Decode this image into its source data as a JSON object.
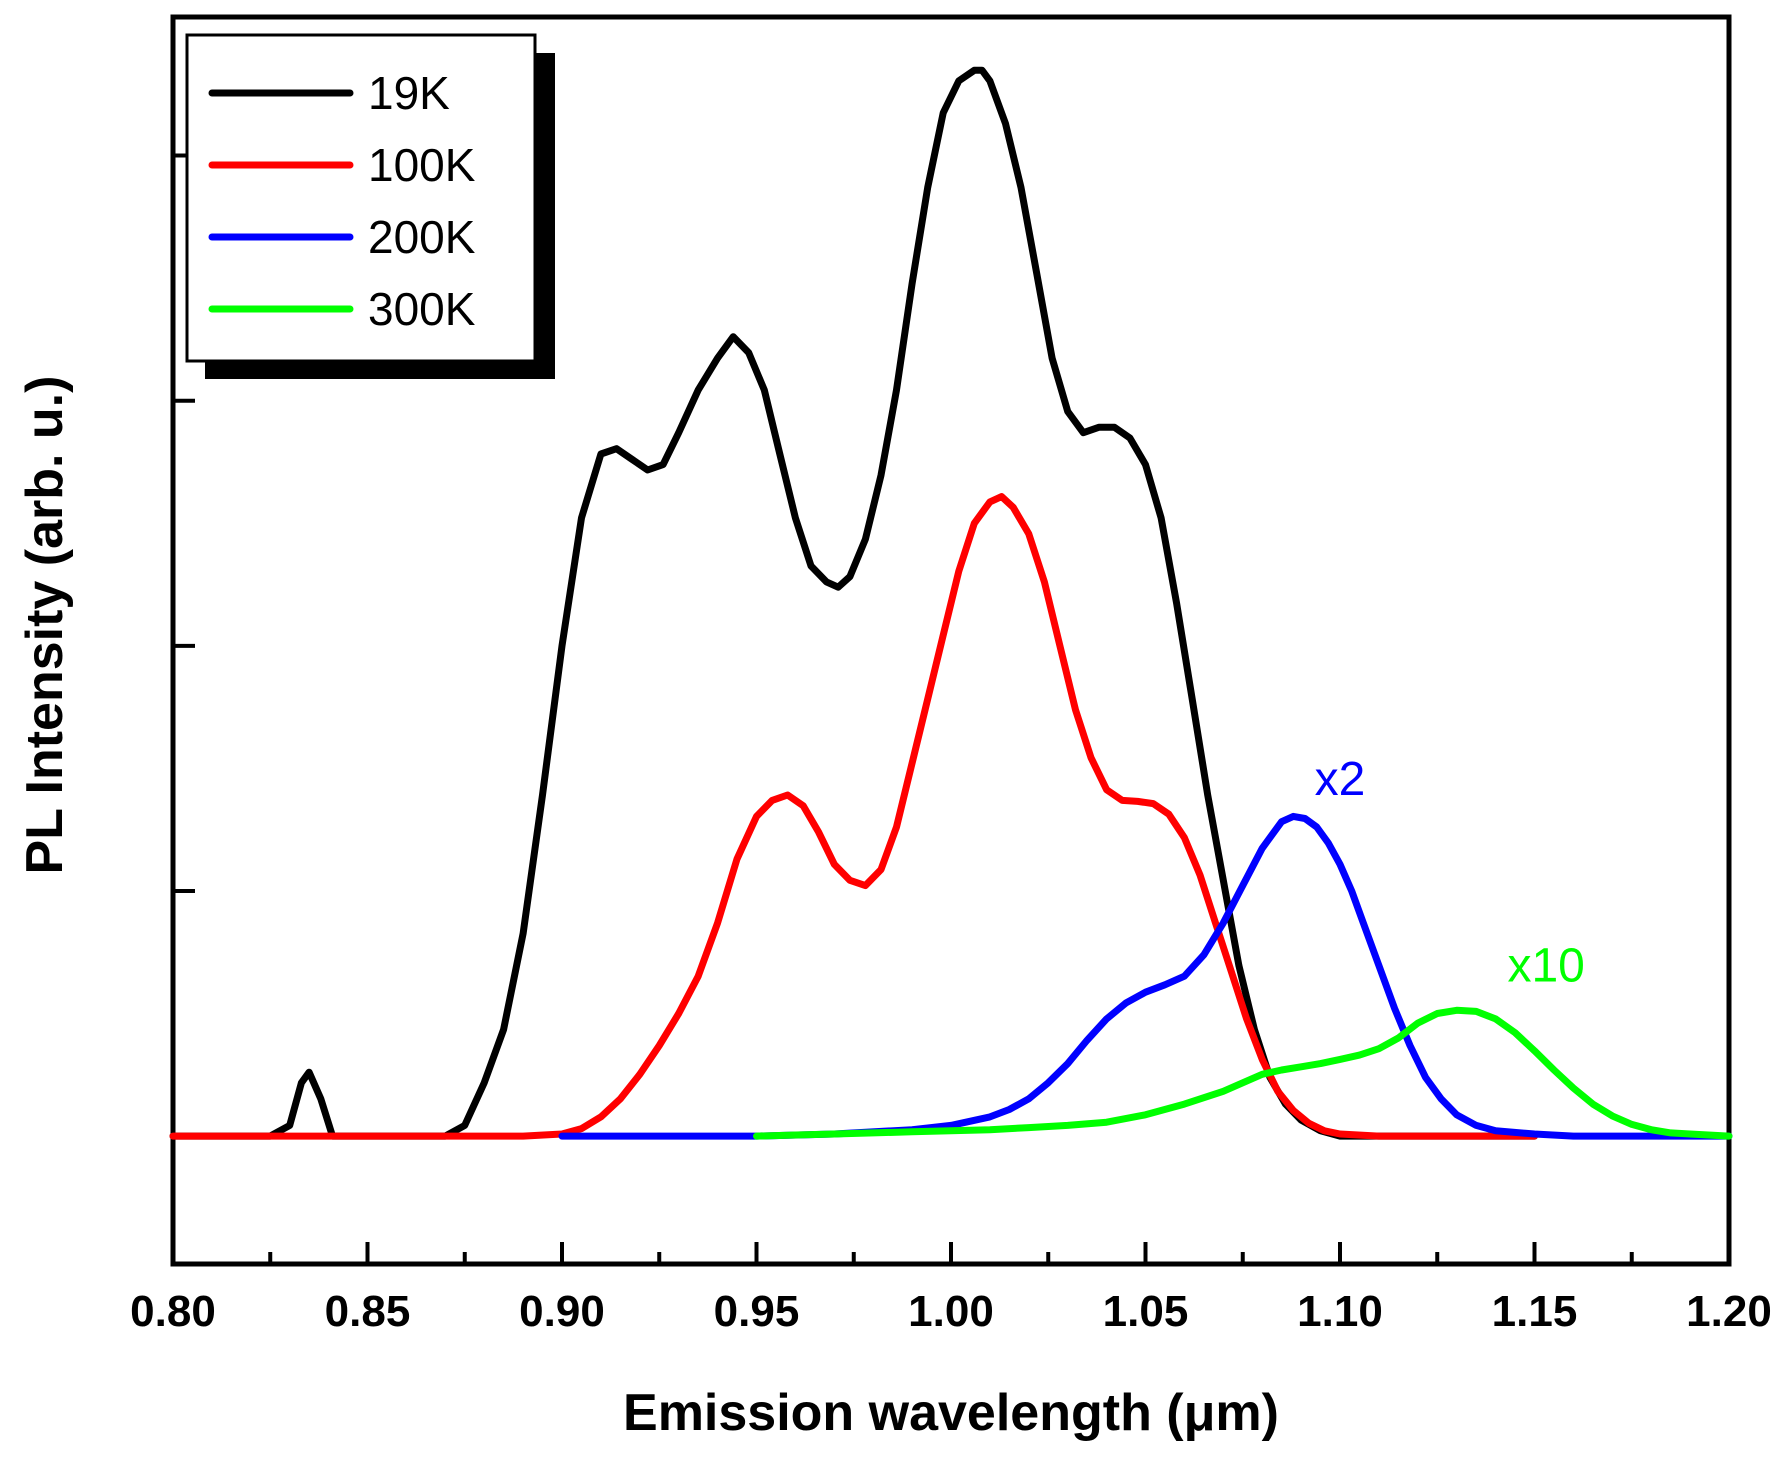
{
  "chart_data": {
    "type": "line",
    "title": "",
    "xlabel": "Emission wavelength (μm)",
    "ylabel": "PL Intensity (arb. u.)",
    "xlim": [
      0.8,
      1.2
    ],
    "ylim": [
      -0.12,
      1.05
    ],
    "x_major_ticks": [
      0.8,
      0.85,
      0.9,
      0.95,
      1.0,
      1.05,
      1.1,
      1.15,
      1.2
    ],
    "x_tick_labels": [
      "0.80",
      "0.85",
      "0.90",
      "0.95",
      "1.00",
      "1.05",
      "1.10",
      "1.15",
      "1.20"
    ],
    "x_minor_ticks": [
      0.825,
      0.875,
      0.925,
      0.975,
      1.025,
      1.075,
      1.125,
      1.175
    ],
    "y_ticks": [
      0.0,
      0.23,
      0.46,
      0.69,
      0.92
    ],
    "legend_position": "top-left",
    "series": [
      {
        "name": "19K",
        "color": "#000000",
        "x": [
          0.8,
          0.825,
          0.83,
          0.833,
          0.835,
          0.838,
          0.841,
          0.85,
          0.87,
          0.875,
          0.88,
          0.885,
          0.89,
          0.895,
          0.9,
          0.905,
          0.91,
          0.914,
          0.918,
          0.922,
          0.926,
          0.93,
          0.935,
          0.94,
          0.944,
          0.948,
          0.952,
          0.956,
          0.96,
          0.964,
          0.968,
          0.971,
          0.974,
          0.978,
          0.982,
          0.986,
          0.99,
          0.994,
          0.998,
          1.002,
          1.006,
          1.008,
          1.01,
          1.014,
          1.018,
          1.022,
          1.026,
          1.03,
          1.034,
          1.038,
          1.042,
          1.046,
          1.05,
          1.054,
          1.058,
          1.062,
          1.066,
          1.07,
          1.074,
          1.078,
          1.082,
          1.086,
          1.09,
          1.095,
          1.1,
          1.11,
          1.13,
          1.15
        ],
        "values": [
          0.0,
          0.0,
          0.01,
          0.05,
          0.06,
          0.035,
          0.0,
          0.0,
          0.0,
          0.01,
          0.05,
          0.1,
          0.19,
          0.32,
          0.46,
          0.58,
          0.64,
          0.645,
          0.635,
          0.625,
          0.63,
          0.66,
          0.7,
          0.73,
          0.75,
          0.735,
          0.7,
          0.64,
          0.58,
          0.535,
          0.52,
          0.515,
          0.525,
          0.56,
          0.62,
          0.7,
          0.8,
          0.89,
          0.96,
          0.99,
          1.0,
          1.0,
          0.99,
          0.95,
          0.89,
          0.81,
          0.73,
          0.68,
          0.66,
          0.665,
          0.665,
          0.655,
          0.63,
          0.58,
          0.5,
          0.41,
          0.32,
          0.24,
          0.16,
          0.1,
          0.055,
          0.03,
          0.015,
          0.005,
          0.0,
          0.0,
          0.0,
          0.0
        ]
      },
      {
        "name": "100K",
        "color": "#ff0000",
        "x": [
          0.8,
          0.89,
          0.9,
          0.905,
          0.91,
          0.915,
          0.92,
          0.925,
          0.93,
          0.935,
          0.94,
          0.945,
          0.95,
          0.954,
          0.958,
          0.962,
          0.966,
          0.97,
          0.974,
          0.978,
          0.982,
          0.986,
          0.99,
          0.994,
          0.998,
          1.002,
          1.006,
          1.01,
          1.013,
          1.016,
          1.02,
          1.024,
          1.028,
          1.032,
          1.036,
          1.04,
          1.044,
          1.048,
          1.052,
          1.056,
          1.06,
          1.064,
          1.068,
          1.072,
          1.076,
          1.08,
          1.084,
          1.088,
          1.092,
          1.096,
          1.1,
          1.11,
          1.15
        ],
        "values": [
          0.0,
          0.0,
          0.002,
          0.007,
          0.018,
          0.035,
          0.058,
          0.085,
          0.115,
          0.15,
          0.2,
          0.26,
          0.3,
          0.315,
          0.32,
          0.31,
          0.285,
          0.255,
          0.24,
          0.235,
          0.25,
          0.29,
          0.35,
          0.41,
          0.47,
          0.53,
          0.575,
          0.595,
          0.6,
          0.59,
          0.565,
          0.52,
          0.46,
          0.4,
          0.355,
          0.325,
          0.315,
          0.314,
          0.312,
          0.302,
          0.28,
          0.245,
          0.2,
          0.155,
          0.11,
          0.072,
          0.042,
          0.024,
          0.012,
          0.005,
          0.002,
          0.0,
          0.0
        ]
      },
      {
        "name": "200K",
        "color": "#0000ff",
        "x": [
          0.9,
          0.95,
          0.97,
          0.99,
          1.0,
          1.01,
          1.015,
          1.02,
          1.025,
          1.03,
          1.035,
          1.04,
          1.045,
          1.05,
          1.055,
          1.06,
          1.065,
          1.07,
          1.075,
          1.08,
          1.085,
          1.088,
          1.091,
          1.094,
          1.097,
          1.1,
          1.103,
          1.106,
          1.11,
          1.114,
          1.118,
          1.122,
          1.126,
          1.13,
          1.135,
          1.14,
          1.15,
          1.16,
          1.18,
          1.2
        ],
        "values": [
          0.0,
          0.0,
          0.002,
          0.006,
          0.01,
          0.018,
          0.025,
          0.035,
          0.05,
          0.068,
          0.09,
          0.11,
          0.125,
          0.135,
          0.142,
          0.15,
          0.17,
          0.2,
          0.235,
          0.27,
          0.295,
          0.3,
          0.298,
          0.29,
          0.275,
          0.255,
          0.23,
          0.2,
          0.16,
          0.12,
          0.085,
          0.055,
          0.035,
          0.02,
          0.01,
          0.005,
          0.002,
          0.0,
          0.0,
          0.0
        ]
      },
      {
        "name": "300K",
        "color": "#00ff00",
        "x": [
          0.95,
          0.96,
          0.97,
          0.98,
          0.99,
          1.0,
          1.01,
          1.02,
          1.03,
          1.04,
          1.05,
          1.06,
          1.07,
          1.075,
          1.08,
          1.085,
          1.09,
          1.095,
          1.1,
          1.105,
          1.11,
          1.115,
          1.12,
          1.125,
          1.13,
          1.135,
          1.14,
          1.145,
          1.15,
          1.155,
          1.16,
          1.165,
          1.17,
          1.175,
          1.18,
          1.185,
          1.19,
          1.2
        ],
        "values": [
          0.0,
          0.001,
          0.002,
          0.003,
          0.004,
          0.005,
          0.006,
          0.008,
          0.01,
          0.013,
          0.02,
          0.03,
          0.042,
          0.05,
          0.058,
          0.062,
          0.065,
          0.068,
          0.072,
          0.076,
          0.082,
          0.092,
          0.106,
          0.115,
          0.118,
          0.117,
          0.11,
          0.097,
          0.08,
          0.062,
          0.045,
          0.03,
          0.019,
          0.011,
          0.006,
          0.003,
          0.002,
          0.0
        ]
      }
    ],
    "annotations": [
      {
        "text": "x2",
        "color": "#0000ff",
        "x": 1.1,
        "y": 0.32
      },
      {
        "text": "x10",
        "color": "#00ff00",
        "x": 1.153,
        "y": 0.145
      }
    ]
  }
}
